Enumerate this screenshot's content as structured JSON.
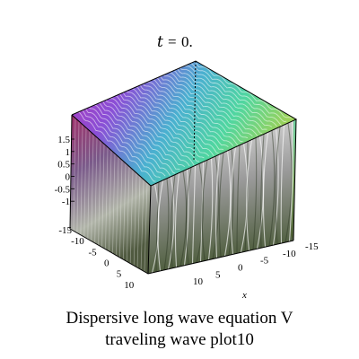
{
  "chart_data": {
    "type": "surface3d",
    "title_var": "t",
    "title_value": "0.",
    "x_label": "x",
    "x_ticks": [
      -15,
      -10,
      -5,
      0,
      5,
      10
    ],
    "y_ticks": [
      -15,
      -10,
      -5,
      0,
      5,
      10
    ],
    "z_ticks": [
      "1.5",
      "1",
      "0.5",
      "0",
      "-0.5",
      "-1"
    ],
    "xlim": [
      -15,
      15
    ],
    "ylim": [
      -15,
      15
    ],
    "zlim": [
      -1.5,
      1.5
    ],
    "boxed": true,
    "colormap": [
      "#a0306a",
      "#b238b8",
      "#8a4fd6",
      "#4ab0d0",
      "#50d6a0",
      "#9ad25a",
      "#c8c8c8",
      "#ffffff"
    ]
  },
  "caption": {
    "line1": "Dispersive long wave equation V",
    "line2": "traveling wave plot10"
  }
}
